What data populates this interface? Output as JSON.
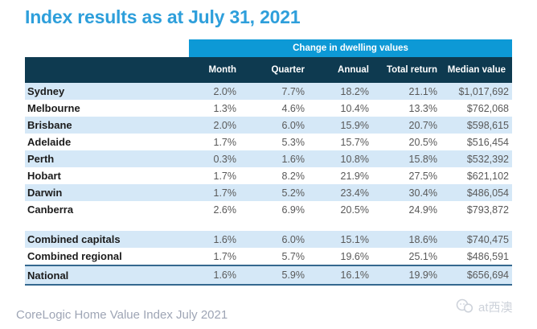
{
  "title": "Index results as at July 31, 2021",
  "table": {
    "group_header": "Change in dwelling values",
    "columns": [
      "Month",
      "Quarter",
      "Annual",
      "Total return",
      "Median value"
    ],
    "rows": [
      {
        "label": "Sydney",
        "month": "2.0%",
        "quarter": "7.7%",
        "annual": "18.2%",
        "total_return": "21.1%",
        "median_value": "$1,017,692",
        "shaded": true
      },
      {
        "label": "Melbourne",
        "month": "1.3%",
        "quarter": "4.6%",
        "annual": "10.4%",
        "total_return": "13.3%",
        "median_value": "$762,068",
        "shaded": false
      },
      {
        "label": "Brisbane",
        "month": "2.0%",
        "quarter": "6.0%",
        "annual": "15.9%",
        "total_return": "20.7%",
        "median_value": "$598,615",
        "shaded": true
      },
      {
        "label": "Adelaide",
        "month": "1.7%",
        "quarter": "5.3%",
        "annual": "15.7%",
        "total_return": "20.5%",
        "median_value": "$516,454",
        "shaded": false
      },
      {
        "label": "Perth",
        "month": "0.3%",
        "quarter": "1.6%",
        "annual": "10.8%",
        "total_return": "15.8%",
        "median_value": "$532,392",
        "shaded": true
      },
      {
        "label": "Hobart",
        "month": "1.7%",
        "quarter": "8.2%",
        "annual": "21.9%",
        "total_return": "27.5%",
        "median_value": "$621,102",
        "shaded": false
      },
      {
        "label": "Darwin",
        "month": "1.7%",
        "quarter": "5.2%",
        "annual": "23.4%",
        "total_return": "30.4%",
        "median_value": "$486,054",
        "shaded": true
      },
      {
        "label": "Canberra",
        "month": "2.6%",
        "quarter": "6.9%",
        "annual": "20.5%",
        "total_return": "24.9%",
        "median_value": "$793,872",
        "shaded": false
      },
      {
        "label": "Combined capitals",
        "month": "1.6%",
        "quarter": "6.0%",
        "annual": "15.1%",
        "total_return": "18.6%",
        "median_value": "$740,475",
        "shaded": true,
        "gap_before": true
      },
      {
        "label": "Combined regional",
        "month": "1.7%",
        "quarter": "5.7%",
        "annual": "19.6%",
        "total_return": "25.1%",
        "median_value": "$486,591",
        "shaded": false
      },
      {
        "label": "National",
        "month": "1.6%",
        "quarter": "5.9%",
        "annual": "16.1%",
        "total_return": "19.9%",
        "median_value": "$656,694",
        "shaded": true,
        "final": true
      }
    ]
  },
  "footer": {
    "caption": "CoreLogic Home Value Index July 2021"
  },
  "watermark": {
    "text": "at西澳"
  },
  "colors": {
    "title_blue": "#2E9FDB",
    "band_blue": "#0D99D6",
    "header_navy": "#0E3A50",
    "row_shade_blue": "#D5E8F7",
    "national_border_blue": "#35688F",
    "value_gray": "#595959",
    "footer_gray": "#9EA5B5"
  }
}
